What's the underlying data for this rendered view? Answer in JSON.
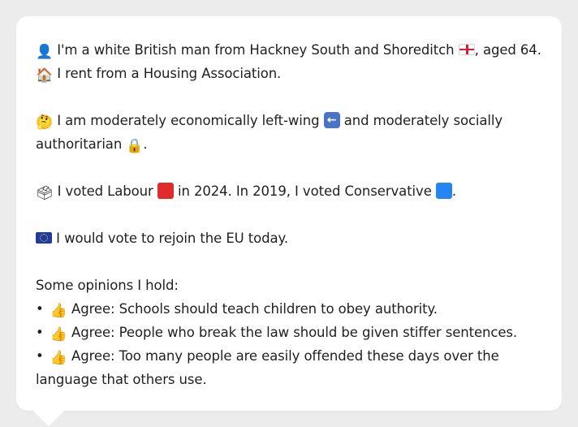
{
  "lines": {
    "identity": "I'm a white British man from Hackney South and Shoreditch",
    "identity_tail": ", aged 64.",
    "housing": "I rent from a Housing Association.",
    "politics_a": "I am moderately economically left-wing",
    "politics_b": "and moderately socially",
    "politics_c": "authoritarian",
    "politics_end": ".",
    "vote_a": "I voted Labour",
    "vote_b": "in 2024. In 2019, I voted Conservative",
    "vote_end": ".",
    "eu": "I would vote to rejoin the EU today.",
    "opinions_heading": "Some opinions I hold:"
  },
  "opinions": [
    {
      "bullet": "•",
      "label": "Agree:",
      "text": "Schools should teach children to obey authority."
    },
    {
      "bullet": "•",
      "label": "Agree:",
      "text": "People who break the law should be given stiffer sentences."
    },
    {
      "bullet": "•",
      "label": "Agree:",
      "text": "Too many people are easily offended these days over the"
    }
  ],
  "opinion_wrap": "language that others use.",
  "icons": {
    "person": "person-silhouette-icon",
    "house": "house-icon",
    "thinking": "thinking-face-icon",
    "left_arrow": "left-arrow-icon",
    "lock": "lock-icon",
    "ballot": "ballot-box-icon",
    "eu_flag": "eu-flag-icon",
    "england_flag": "england-flag-icon",
    "thumbs_up": "thumbs-up-icon"
  },
  "colors": {
    "labour": "#e02b2b",
    "conservative": "#2486f2",
    "bubble": "#ffffff",
    "background": "#ececec"
  }
}
